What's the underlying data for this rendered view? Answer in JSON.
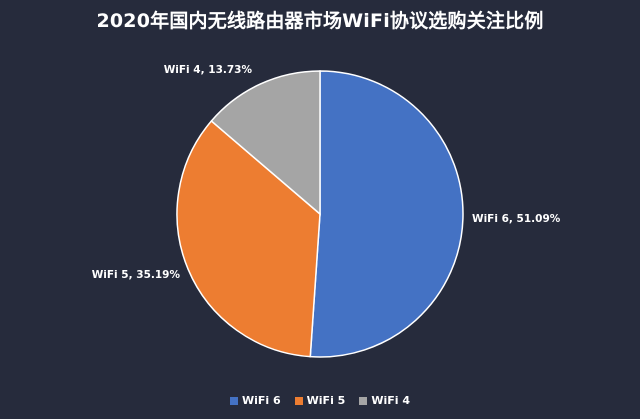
{
  "chart_data": {
    "type": "pie",
    "title": "2020年国内无线路由器市场WiFi协议选购关注比例",
    "categories": [
      "WiFi 6",
      "WiFi 5",
      "WiFi 4"
    ],
    "values": [
      51.09,
      35.19,
      13.73
    ],
    "labels": [
      "WiFi 6, 51.09%",
      "WiFi 5, 35.19%",
      "WiFi 4, 13.73%"
    ],
    "colors": [
      "#4472c4",
      "#ed7d31",
      "#a5a5a5"
    ],
    "legend_position": "bottom",
    "start_angle": "12 o'clock",
    "direction": "clockwise"
  }
}
